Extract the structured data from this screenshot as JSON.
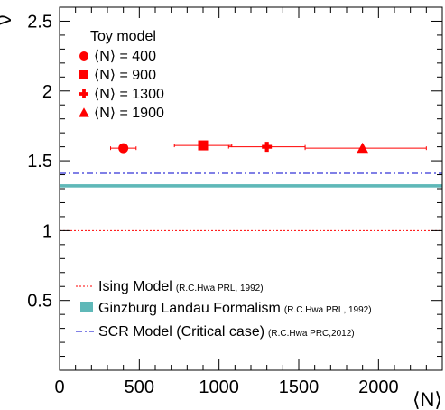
{
  "chart_data": {
    "type": "scatter",
    "xlabel": "⟨N⟩",
    "ylabel": "ν",
    "xlim": [
      0,
      2400
    ],
    "ylim": [
      0,
      2.6
    ],
    "x_ticks": [
      0,
      500,
      1000,
      1500,
      2000
    ],
    "x_tick_labels": [
      "0",
      "500",
      "1000",
      "1500",
      "2000"
    ],
    "y_ticks": [
      0.5,
      1,
      1.5,
      2,
      2.5
    ],
    "y_tick_labels": [
      "0.5",
      "1",
      "1.5",
      "2",
      "2.5"
    ],
    "grid": false,
    "legend_title": "Toy model",
    "series": [
      {
        "name": "⟨N⟩ = 400",
        "marker": "circle",
        "color": "#ff0000",
        "x": [
          400
        ],
        "y": [
          1.59
        ],
        "x_err": [
          [
            320,
            480
          ]
        ]
      },
      {
        "name": "⟨N⟩ = 900",
        "marker": "square",
        "color": "#ff0000",
        "x": [
          900
        ],
        "y": [
          1.61
        ],
        "x_err": [
          [
            720,
            1080
          ]
        ]
      },
      {
        "name": "⟨N⟩ = 1300",
        "marker": "cross",
        "color": "#ff0000",
        "x": [
          1300
        ],
        "y": [
          1.6
        ],
        "x_err": [
          [
            1060,
            1540
          ]
        ]
      },
      {
        "name": "⟨N⟩ = 1900",
        "marker": "triangle",
        "color": "#ff0000",
        "x": [
          1900
        ],
        "y": [
          1.59
        ],
        "x_err": [
          [
            1540,
            2300
          ]
        ]
      }
    ],
    "reference_lines": [
      {
        "name": "Ising Model",
        "ref": "(R.C.Hwa PRL, 1992)",
        "style": "dotted",
        "color": "#ff0000",
        "y": 1.0
      },
      {
        "name": "Ginzburg Landau Formalism",
        "ref": "(R.C.Hwa PRL, 1992)",
        "style": "band",
        "color": "#5fb8b8",
        "y": [
          1.31,
          1.33
        ]
      },
      {
        "name": "SCR Model (Critical case)",
        "ref": "(R.C.Hwa PRC,2012)",
        "style": "dashdot",
        "color": "#0000cc",
        "y": 1.41
      }
    ]
  }
}
